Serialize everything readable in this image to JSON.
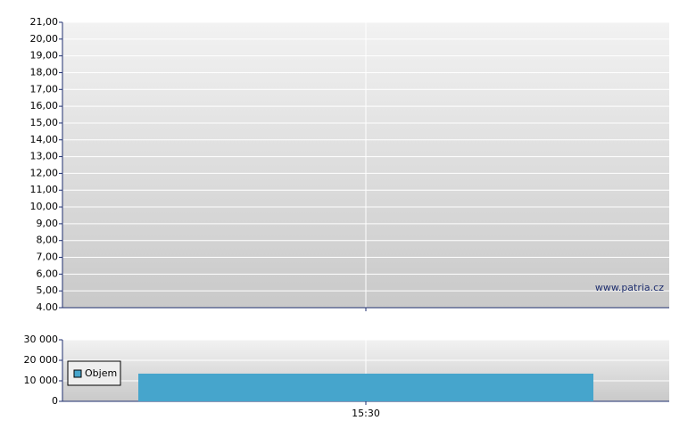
{
  "chart_data": [
    {
      "type": "line",
      "watermark": "www.patria.cz",
      "ylim": [
        4,
        21
      ],
      "yticks": [
        {
          "value": 4,
          "label": "4.00"
        },
        {
          "value": 5,
          "label": "5,00"
        },
        {
          "value": 6,
          "label": "6,00"
        },
        {
          "value": 7,
          "label": "7,00"
        },
        {
          "value": 8,
          "label": "8,00"
        },
        {
          "value": 9,
          "label": "9,00"
        },
        {
          "value": 10,
          "label": "10,00"
        },
        {
          "value": 11,
          "label": "11,00"
        },
        {
          "value": 12,
          "label": "12,00"
        },
        {
          "value": 13,
          "label": "13,00"
        },
        {
          "value": 14,
          "label": "14,00"
        },
        {
          "value": 15,
          "label": "15,00"
        },
        {
          "value": 16,
          "label": "16,00"
        },
        {
          "value": 17,
          "label": "17,00"
        },
        {
          "value": 18,
          "label": "18,00"
        },
        {
          "value": 19,
          "label": "19,00"
        },
        {
          "value": 20,
          "label": "20,00"
        },
        {
          "value": 21,
          "label": "21,00"
        }
      ],
      "grid": true
    },
    {
      "type": "bar",
      "categories": [
        "15:30"
      ],
      "series": [
        {
          "name": "Objem",
          "color": "#46a5cc",
          "values": [
            13500
          ]
        }
      ],
      "ylim": [
        0,
        30000
      ],
      "yticks": [
        0,
        {
          "value": 10000,
          "label": "10 000"
        },
        {
          "value": 20000,
          "label": "20 000"
        },
        {
          "value": 30000,
          "label": "30 000"
        }
      ],
      "grid": true,
      "legend": "left"
    }
  ]
}
